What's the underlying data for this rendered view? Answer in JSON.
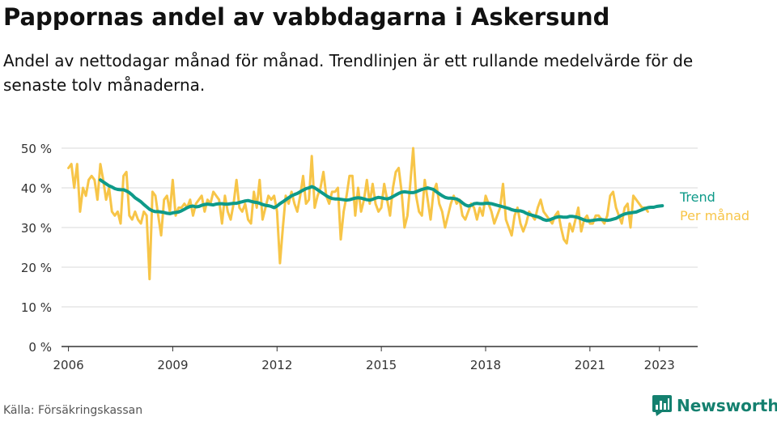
{
  "title": "Pappornas andel av vabbdagarna i Askersund",
  "subtitle": "Andel av nettodagar månad för månad. Trendlinjen är ett rullande medelvärde för de senaste tolv månaderna.",
  "source": "Källa: Försäkringskassan",
  "brand": "Newsworthy",
  "colors": {
    "trend": "#0e9a89",
    "monthly": "#f7c548",
    "grid": "#d9d9d9",
    "axis": "#333333",
    "brand": "#14806f"
  },
  "icons": [
    "newsworthy-logo-icon"
  ],
  "chart_data": {
    "type": "line",
    "x_unit": "year (decimal)",
    "xlim": [
      2005.8,
      2024.1
    ],
    "ylim": [
      0,
      50
    ],
    "y_ticks": [
      0,
      10,
      20,
      30,
      40,
      50
    ],
    "y_tick_labels": [
      "0 %",
      "10 %",
      "20 %",
      "30 %",
      "40 %",
      "50 %"
    ],
    "x_ticks": [
      2006,
      2009,
      2012,
      2015,
      2018,
      2021,
      2023
    ],
    "x_tick_labels": [
      "2006",
      "2009",
      "2012",
      "2015",
      "2018",
      "2021",
      "2023"
    ],
    "grid": true,
    "legend_placement": "right-end-labels",
    "series": [
      {
        "name": "Per månad",
        "color": "#f7c548",
        "x_start": 2006.0,
        "x_step": 0.0833333,
        "values": [
          45,
          46,
          40,
          46,
          34,
          40,
          38,
          42,
          43,
          42,
          37,
          46,
          42,
          37,
          40,
          34,
          33,
          34,
          31,
          43,
          44,
          33,
          32,
          34,
          32,
          31,
          34,
          33,
          17,
          39,
          38,
          33,
          28,
          37,
          38,
          34,
          42,
          33,
          35,
          35,
          36,
          35,
          37,
          33,
          36,
          37,
          38,
          34,
          37,
          36,
          39,
          38,
          37,
          31,
          38,
          34,
          32,
          36,
          42,
          35,
          34,
          36,
          32,
          31,
          39,
          35,
          42,
          32,
          35,
          38,
          37,
          38,
          34,
          21,
          30,
          38,
          36,
          39,
          36,
          34,
          38,
          43,
          36,
          37,
          48,
          35,
          38,
          40,
          44,
          38,
          36,
          39,
          39,
          40,
          27,
          34,
          38,
          43,
          43,
          33,
          40,
          34,
          37,
          42,
          36,
          41,
          36,
          34,
          35,
          41,
          37,
          33,
          40,
          44,
          45,
          39,
          30,
          33,
          41,
          50,
          38,
          34,
          33,
          42,
          37,
          32,
          39,
          41,
          36,
          34,
          30,
          33,
          36,
          38,
          36,
          37,
          33,
          32,
          34,
          36,
          35,
          32,
          35,
          33,
          38,
          36,
          34,
          31,
          33,
          35,
          41,
          32,
          30,
          28,
          33,
          35,
          31,
          29,
          31,
          34,
          33,
          32,
          35,
          37,
          34,
          33,
          32,
          31,
          33,
          34,
          30,
          27,
          26,
          31,
          29,
          32,
          35,
          29,
          32,
          33,
          31,
          31,
          33,
          33,
          32,
          31,
          33,
          38,
          39,
          35,
          33,
          31,
          35,
          36,
          30,
          38,
          37,
          36,
          35,
          35,
          34
        ],
        "last_value_label": "Per månad"
      },
      {
        "name": "Trend",
        "color": "#0e9a89",
        "x_start": 2006.9167,
        "x_step": 0.0833333,
        "values": [
          42,
          41.5,
          41,
          40.5,
          40.2,
          39.8,
          39.6,
          39.5,
          39.5,
          39.2,
          38.8,
          38.2,
          37.5,
          37,
          36.5,
          35.8,
          35.2,
          34.6,
          34.2,
          34,
          34,
          33.9,
          33.8,
          33.6,
          33.5,
          33.7,
          33.8,
          33.9,
          34.2,
          34.6,
          35,
          35.3,
          35.4,
          35.2,
          35.3,
          35.6,
          35.8,
          35.9,
          35.8,
          35.7,
          35.9,
          36,
          36,
          35.9,
          35.9,
          36,
          36.1,
          36.1,
          36.3,
          36.5,
          36.7,
          36.8,
          36.6,
          36.4,
          36.3,
          36.1,
          35.8,
          35.6,
          35.5,
          35.3,
          35,
          35.4,
          36,
          36.5,
          37,
          37.5,
          38,
          38.3,
          38.6,
          39,
          39.4,
          39.8,
          40,
          40.3,
          40,
          39.5,
          39,
          38.5,
          38,
          37.6,
          37.3,
          37.2,
          37.2,
          37.1,
          37,
          36.9,
          37,
          37.2,
          37.4,
          37.5,
          37.4,
          37.2,
          37,
          36.9,
          37.1,
          37.4,
          37.6,
          37.5,
          37.3,
          37.2,
          37.4,
          37.8,
          38.2,
          38.6,
          38.9,
          39,
          38.9,
          38.8,
          38.8,
          39,
          39.3,
          39.6,
          39.8,
          40,
          39.8,
          39.6,
          39,
          38.5,
          38,
          37.6,
          37.4,
          37.4,
          37.3,
          37.2,
          36.8,
          36.2,
          35.7,
          35.4,
          35.6,
          36,
          36.1,
          36,
          36,
          36.1,
          36.1,
          36,
          35.8,
          35.6,
          35.4,
          35.2,
          35,
          34.8,
          34.5,
          34.3,
          34.2,
          34.2,
          34,
          33.6,
          33.3,
          33.1,
          32.9,
          32.7,
          32.4,
          32,
          31.8,
          31.9,
          32.2,
          32.5,
          32.7,
          32.7,
          32.6,
          32.6,
          32.8,
          32.8,
          32.7,
          32.5,
          32.2,
          31.9,
          31.7,
          31.7,
          31.8,
          31.9,
          32,
          32,
          31.9,
          31.8,
          31.9,
          32.1,
          32.3,
          32.7,
          33.1,
          33.4,
          33.6,
          33.7,
          33.8,
          33.9,
          34.2,
          34.5,
          34.8,
          35,
          35.1,
          35.1,
          35.3,
          35.4,
          35.5
        ],
        "last_value_label": "Trend"
      }
    ]
  }
}
